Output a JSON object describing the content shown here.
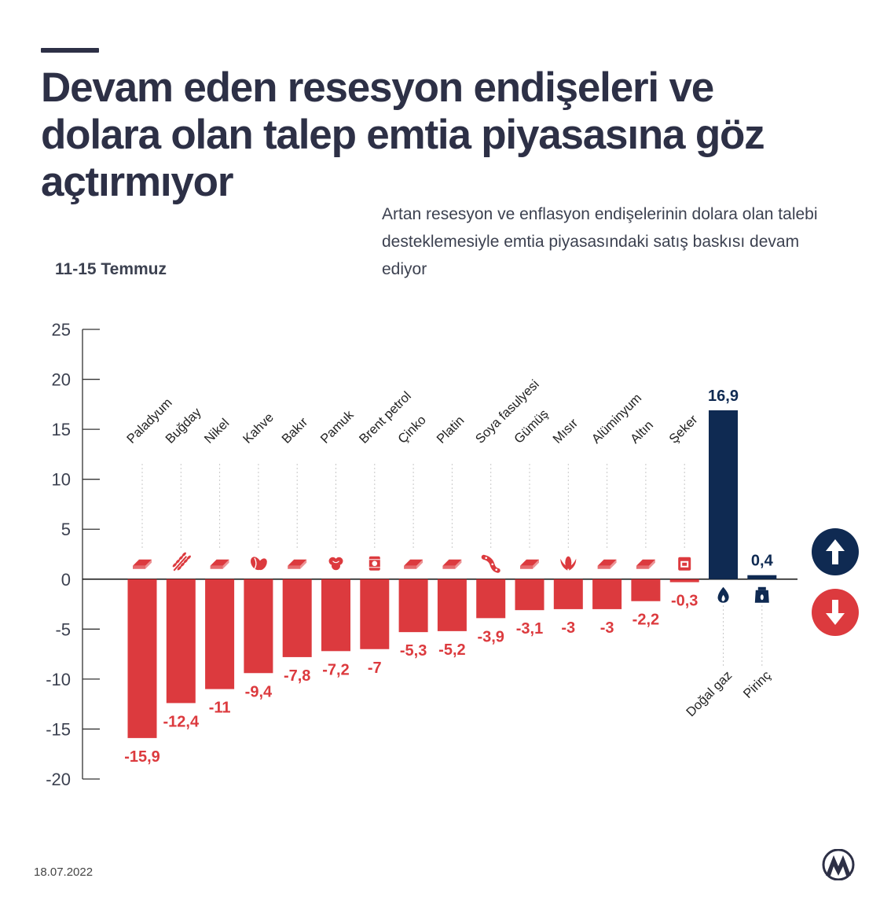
{
  "title": "Devam eden resesyon endişeleri ve dolara olan talep emtia piyasasına göz açtırmıyor",
  "subtitle": "Artan resesyon ve enflasyon endişelerinin dolara olan talebi desteklemesiyle emtia piyasasındaki satış baskısı devam ediyor",
  "period": "11-15 Temmuz",
  "date": "18.07.2022",
  "colors": {
    "negative": "#dc3a3e",
    "positive": "#0f2a52",
    "text": "#2d3046"
  },
  "icons": {
    "up": "arrow-up-icon",
    "down": "arrow-down-icon",
    "logo": "aa-logo-icon"
  },
  "chart_data": {
    "type": "bar",
    "title": "",
    "xlabel": "",
    "ylabel": "",
    "ylim": [
      -20,
      25
    ],
    "yticks": [
      25,
      20,
      15,
      10,
      5,
      0,
      -5,
      -10,
      -15,
      -20
    ],
    "tick_labels": [
      "25",
      "20",
      "15",
      "10",
      "5",
      "0",
      "-5",
      "-10",
      "-15",
      "-20"
    ],
    "categories": [
      "Paladyum",
      "Buğday",
      "Nikel",
      "Kahve",
      "Bakır",
      "Pamuk",
      "Brent petrol",
      "Çinko",
      "Platin",
      "Soya fasulyesi",
      "Gümüş",
      "Mısır",
      "Alüminyum",
      "Altın",
      "Şeker",
      "Doğal gaz",
      "Pirinç"
    ],
    "values": [
      -15.9,
      -12.4,
      -11,
      -9.4,
      -7.8,
      -7.2,
      -7,
      -5.3,
      -5.2,
      -3.9,
      -3.1,
      -3,
      -3,
      -2.2,
      -0.3,
      16.9,
      0.4
    ],
    "value_labels": [
      "-15,9",
      "-12,4",
      "-11",
      "-9,4",
      "-7,8",
      "-7,2",
      "-7",
      "-5,3",
      "-5,2",
      "-3,9",
      "-3,1",
      "-3",
      "-3",
      "-2,2",
      "-0,3",
      "16,9",
      "0,4"
    ],
    "icons": [
      "metal-bar-icon",
      "wheat-icon",
      "metal-bar-icon",
      "coffee-bean-icon",
      "metal-bar-icon",
      "cotton-icon",
      "oil-barrel-icon",
      "metal-bar-icon",
      "metal-bar-icon",
      "soybean-icon",
      "metal-bar-icon",
      "corn-icon",
      "metal-bar-icon",
      "metal-bar-icon",
      "sugar-sack-icon",
      "gas-flame-icon",
      "rice-sack-icon"
    ]
  }
}
